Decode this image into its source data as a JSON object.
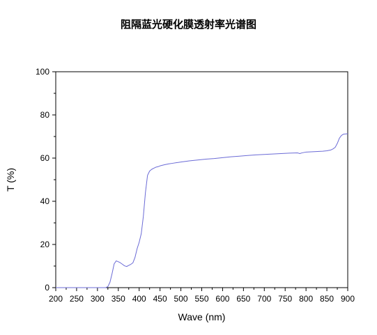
{
  "chart_data": {
    "type": "line",
    "title": "阻隔蓝光硬化膜透射率光谱图",
    "xlabel": "Wave (nm)",
    "ylabel": "T (%)",
    "xlim": [
      200,
      900
    ],
    "ylim": [
      0,
      100
    ],
    "xticks": [
      200,
      250,
      300,
      350,
      400,
      450,
      500,
      550,
      600,
      650,
      700,
      750,
      800,
      850,
      900
    ],
    "yticks": [
      0,
      20,
      40,
      60,
      80,
      100
    ],
    "grid": false,
    "legend": "none",
    "line_color": "#6b6bd6",
    "series": [
      {
        "x": [
          200,
          250,
          300,
          320,
          325,
          330,
          335,
          340,
          345,
          350,
          355,
          360,
          365,
          370,
          375,
          380,
          385,
          390,
          395,
          400,
          405,
          410,
          415,
          420,
          425,
          430,
          435,
          440,
          445,
          450,
          460,
          470,
          480,
          490,
          500,
          520,
          540,
          560,
          580,
          600,
          620,
          640,
          660,
          680,
          700,
          720,
          740,
          760,
          780,
          785,
          790,
          800,
          820,
          840,
          850,
          860,
          865,
          870,
          875,
          880,
          885,
          890,
          900
        ],
        "values": [
          0,
          0,
          0,
          0,
          0.5,
          2.5,
          6.5,
          11,
          12.4,
          12,
          11.5,
          10.8,
          10.1,
          9.8,
          10.3,
          10.8,
          11.5,
          14,
          18,
          21,
          25,
          33,
          44,
          52,
          54,
          54.8,
          55.3,
          55.8,
          56,
          56.4,
          56.9,
          57.3,
          57.6,
          57.9,
          58.2,
          58.7,
          59.1,
          59.5,
          59.8,
          60.2,
          60.6,
          60.9,
          61.2,
          61.5,
          61.7,
          61.9,
          62.1,
          62.3,
          62.4,
          62.1,
          62.4,
          62.8,
          63,
          63.2,
          63.4,
          63.8,
          64.3,
          65,
          66.8,
          69.2,
          70.5,
          71.1,
          71.3
        ]
      }
    ]
  }
}
